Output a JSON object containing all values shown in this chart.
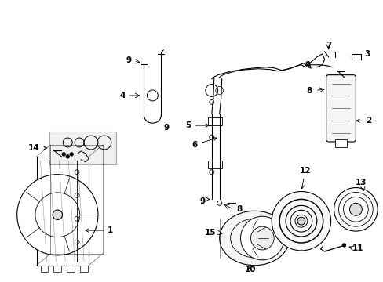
{
  "background_color": "#ffffff",
  "line_color": "#000000",
  "figure_size": [
    4.89,
    3.6
  ],
  "dpi": 100
}
